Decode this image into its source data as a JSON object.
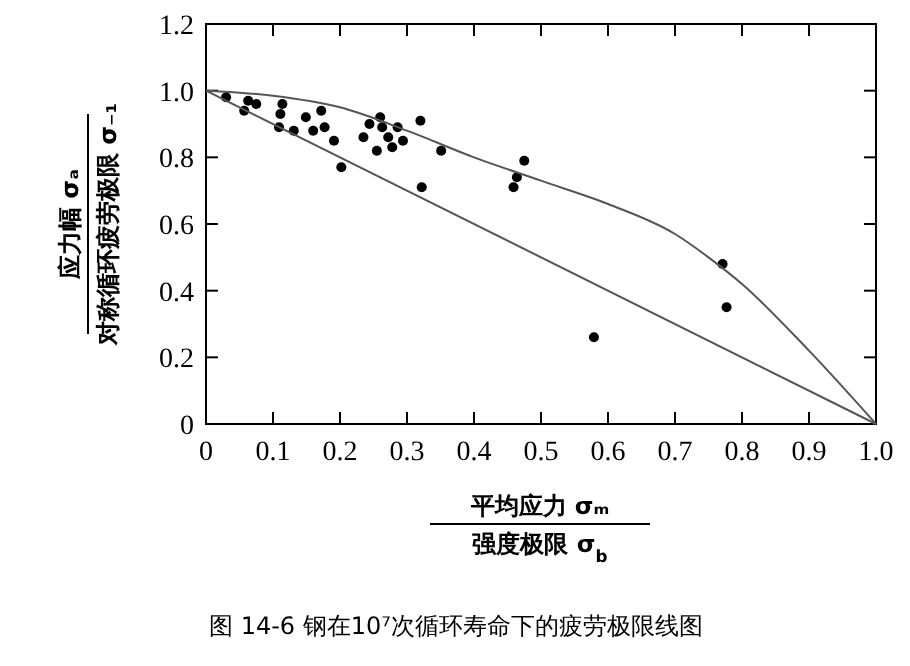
{
  "chart_data": {
    "type": "scatter",
    "title": "图 14-6  钢在10⁷次循环寿命下的疲劳极限线图",
    "xlabel": "平均应力 σₘ\n强度极限 σ$_{b}$",
    "ylabel": "应力幅 σₐ\n对称循环疲劳极限 σ₋₁",
    "xlim": [
      0,
      1
    ],
    "ylim": [
      0,
      1.2
    ],
    "xticks": [
      0,
      {
        "value": 0.1,
        "label": "0.1"
      },
      {
        "value": 0.2,
        "label": "0.2"
      },
      {
        "value": 0.3,
        "label": "0.3"
      },
      {
        "value": 0.4,
        "label": "0.4"
      },
      {
        "value": 0.5,
        "label": "0.5"
      },
      {
        "value": 0.6,
        "label": "0.6"
      },
      {
        "value": 0.7,
        "label": "0.7"
      },
      {
        "value": 0.8,
        "label": "0.8"
      },
      {
        "value": 0.9,
        "label": "0.9"
      },
      {
        "value": 1,
        "label": "1.0"
      }
    ],
    "yticks": [
      0,
      {
        "value": 0.2,
        "label": "0.2"
      },
      {
        "value": 0.4,
        "label": "0.4"
      },
      {
        "value": 0.6,
        "label": "0.6"
      },
      {
        "value": 0.8,
        "label": "0.8"
      },
      {
        "value": 1,
        "label": "1.0"
      },
      {
        "value": 1.2,
        "label": "1.2"
      }
    ],
    "grid": false,
    "marker": "circle",
    "series": [
      {
        "color": "#000000",
        "x": [
          0.03,
          0.057,
          0.063,
          0.075,
          0.114,
          0.111,
          0.109,
          0.131,
          0.149,
          0.16,
          0.172,
          0.177,
          0.191,
          0.202,
          0.235,
          0.244,
          0.255,
          0.26,
          0.263,
          0.272,
          0.278,
          0.286,
          0.294,
          0.32,
          0.322,
          0.351,
          0.459,
          0.464,
          0.475,
          0.579,
          0.771,
          0.777
        ],
        "values": [
          0.98,
          0.94,
          0.97,
          0.96,
          0.96,
          0.93,
          0.89,
          0.88,
          0.92,
          0.88,
          0.94,
          0.89,
          0.85,
          0.77,
          0.86,
          0.9,
          0.82,
          0.92,
          0.89,
          0.86,
          0.83,
          0.89,
          0.85,
          0.91,
          0.71,
          0.82,
          0.71,
          0.74,
          0.79,
          0.26,
          0.48,
          0.35
        ]
      },
      {
        "type": "line",
        "color": "#555555",
        "line_style": "solid",
        "marker": "none",
        "x": [
          0,
          0.1,
          0.2,
          0.3,
          0.4,
          0.5,
          0.6,
          0.7,
          0.75,
          0.8,
          0.9,
          1
        ],
        "values": [
          1,
          0.985,
          0.95,
          0.88,
          0.8,
          0.73,
          0.66,
          0.57,
          0.5,
          0.42,
          0.22,
          0
        ]
      },
      {
        "type": "line",
        "color": "#555555",
        "line_style": "solid",
        "marker": "none",
        "x": [
          0,
          1
        ],
        "values": [
          1,
          0
        ]
      }
    ]
  }
}
